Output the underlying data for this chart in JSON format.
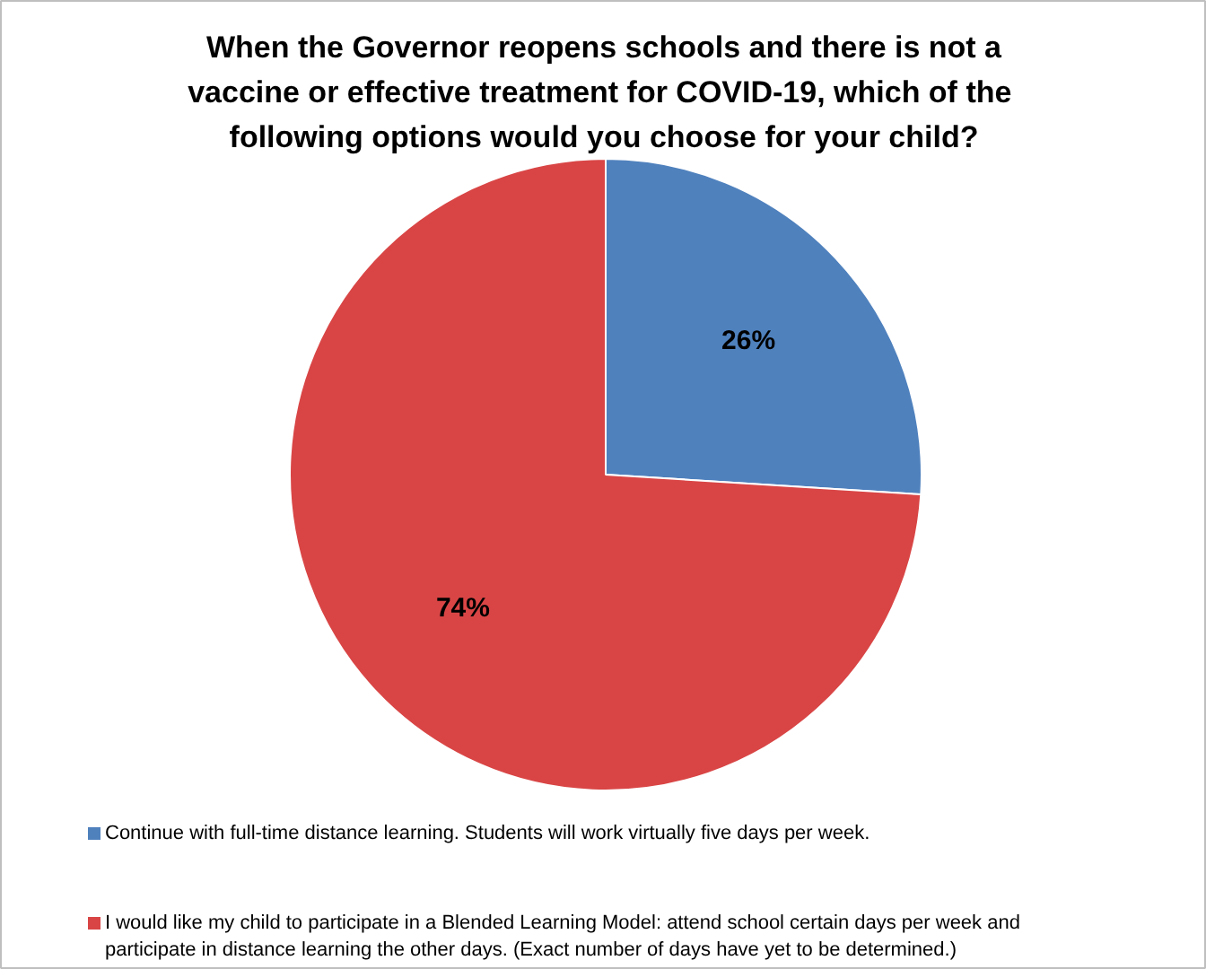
{
  "chart_data": {
    "type": "pie",
    "title": "When the Governor reopens schools and there is not a vaccine or effective treatment for COVID-19,  which of the following options would you choose for your child?",
    "categories": [
      "Continue with full-time distance learning. Students will work virtually five days per week.",
      "I would like my child to participate in a Blended Learning Model: attend school certain days per week and participate in distance learning the other days. (Exact number of days have yet to be determined.)"
    ],
    "values": [
      26,
      74
    ],
    "colors": [
      "#4f81bd",
      "#d94545"
    ],
    "value_labels": [
      "26%",
      "74%"
    ],
    "legend": "bottom"
  }
}
